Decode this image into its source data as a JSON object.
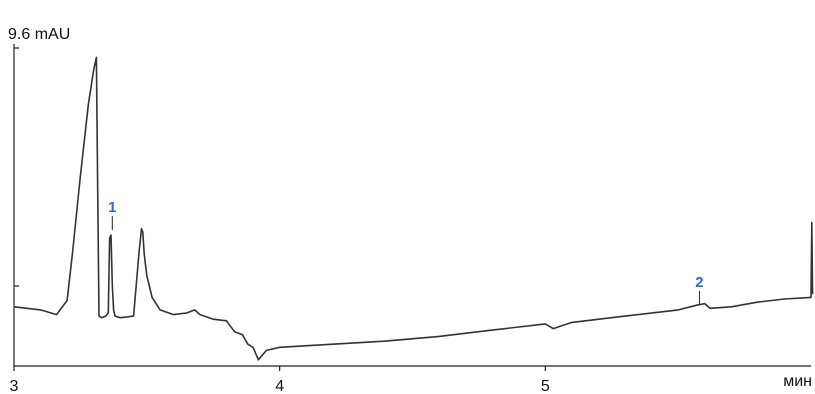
{
  "chart_data": {
    "type": "line",
    "y_unit_label": "9.6 mAU",
    "x_unit_label": "мин",
    "xlim": [
      3.0,
      6.0
    ],
    "ylim": [
      -0.6,
      9.6
    ],
    "x_ticks": [
      {
        "value": 3,
        "label": "3"
      },
      {
        "value": 4,
        "label": "4"
      },
      {
        "value": 5,
        "label": "5"
      }
    ],
    "line_color": "#333333",
    "peak_label_color": "#3366dd",
    "peaks": [
      {
        "label": "1",
        "x": 3.37,
        "y": 3.5
      },
      {
        "label": "2",
        "x": 5.58,
        "y": 1.1
      }
    ],
    "series": [
      {
        "x": [
          3.0,
          3.1,
          3.16,
          3.2,
          3.22,
          3.25,
          3.28,
          3.3,
          3.31,
          3.315,
          3.32,
          3.33,
          3.345,
          3.355,
          3.36,
          3.365,
          3.37,
          3.375,
          3.38,
          3.4,
          3.45,
          3.47,
          3.48,
          3.485,
          3.49,
          3.5,
          3.52,
          3.55,
          3.6,
          3.65,
          3.68,
          3.7,
          3.75,
          3.8,
          3.83,
          3.86,
          3.88,
          3.9,
          3.92,
          3.95,
          4.0,
          4.2,
          4.4,
          4.6,
          4.8,
          5.0,
          5.03,
          5.1,
          5.3,
          5.5,
          5.57,
          5.6,
          5.62,
          5.7,
          5.8,
          5.9,
          6.0,
          6.003,
          6.006
        ],
        "y": [
          1.3,
          1.2,
          1.05,
          1.5,
          3.0,
          5.5,
          7.8,
          8.9,
          9.3,
          5.0,
          1.0,
          0.95,
          1.0,
          1.1,
          3.5,
          3.6,
          2.0,
          1.2,
          1.0,
          0.95,
          1.0,
          3.0,
          3.8,
          3.7,
          3.0,
          2.3,
          1.6,
          1.2,
          1.05,
          1.1,
          1.2,
          1.05,
          0.9,
          0.85,
          0.5,
          0.4,
          0.1,
          0.0,
          -0.4,
          -0.1,
          0.0,
          0.1,
          0.2,
          0.35,
          0.55,
          0.75,
          0.6,
          0.8,
          1.0,
          1.2,
          1.35,
          1.4,
          1.25,
          1.3,
          1.45,
          1.55,
          1.6,
          4.0,
          1.7
        ]
      }
    ]
  }
}
